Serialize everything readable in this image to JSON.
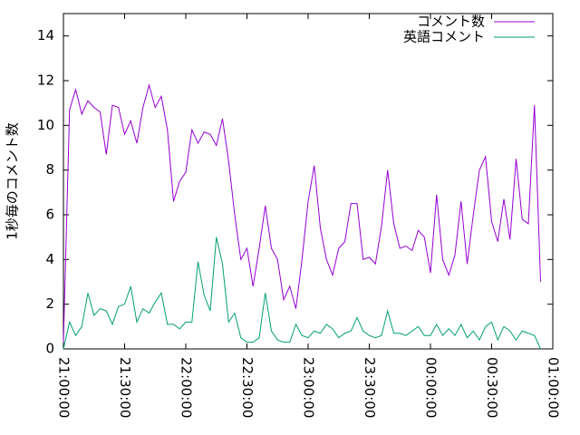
{
  "chart_data": {
    "type": "line",
    "ylabel": "1秒毎のコメント数",
    "x": [
      "21:00:00",
      "21:03:00",
      "21:06:00",
      "21:09:00",
      "21:12:00",
      "21:15:00",
      "21:18:00",
      "21:21:00",
      "21:24:00",
      "21:27:00",
      "21:30:00",
      "21:33:00",
      "21:36:00",
      "21:39:00",
      "21:42:00",
      "21:45:00",
      "21:48:00",
      "21:51:00",
      "21:54:00",
      "21:57:00",
      "22:00:00",
      "22:03:00",
      "22:06:00",
      "22:09:00",
      "22:12:00",
      "22:15:00",
      "22:18:00",
      "22:21:00",
      "22:24:00",
      "22:27:00",
      "22:30:00",
      "22:33:00",
      "22:36:00",
      "22:39:00",
      "22:42:00",
      "22:45:00",
      "22:48:00",
      "22:51:00",
      "22:54:00",
      "22:57:00",
      "23:00:00",
      "23:03:00",
      "23:06:00",
      "23:09:00",
      "23:12:00",
      "23:15:00",
      "23:18:00",
      "23:21:00",
      "23:24:00",
      "23:27:00",
      "23:30:00",
      "23:33:00",
      "23:36:00",
      "23:39:00",
      "23:42:00",
      "23:45:00",
      "23:48:00",
      "23:51:00",
      "23:54:00",
      "23:57:00",
      "00:00:00",
      "00:03:00",
      "00:06:00",
      "00:09:00",
      "00:12:00",
      "00:15:00",
      "00:18:00",
      "00:21:00",
      "00:24:00",
      "00:27:00",
      "00:30:00",
      "00:33:00",
      "00:36:00",
      "00:39:00",
      "00:42:00",
      "00:45:00",
      "00:48:00",
      "00:51:00",
      "00:54:00"
    ],
    "series": [
      {
        "name": "コメント数",
        "color": "#9400d3",
        "values": [
          0.3,
          10.7,
          11.6,
          10.5,
          11.1,
          10.8,
          10.6,
          8.7,
          10.9,
          10.8,
          9.6,
          10.2,
          9.2,
          10.8,
          11.8,
          10.8,
          11.3,
          9.8,
          6.6,
          7.5,
          7.9,
          9.8,
          9.2,
          9.7,
          9.6,
          9.1,
          10.3,
          8.4,
          6.0,
          4.0,
          4.5,
          2.8,
          4.5,
          6.4,
          4.5,
          4.0,
          2.2,
          2.8,
          1.8,
          4.0,
          6.6,
          8.2,
          5.4,
          4.0,
          3.3,
          4.5,
          4.8,
          6.5,
          6.5,
          4.0,
          4.1,
          3.8,
          5.5,
          8.0,
          5.6,
          4.5,
          4.6,
          4.4,
          5.3,
          5.0,
          3.4,
          6.9,
          4.0,
          3.3,
          4.2,
          6.6,
          3.8,
          6.0,
          8.0,
          8.6,
          5.7,
          4.8,
          6.7,
          4.9,
          8.5,
          5.8,
          5.6,
          10.9,
          3.0
        ]
      },
      {
        "name": "英語コメント",
        "color": "#009e73",
        "values": [
          0.0,
          1.2,
          0.6,
          1.0,
          2.5,
          1.5,
          1.8,
          1.7,
          1.1,
          1.9,
          2.0,
          2.8,
          1.2,
          1.8,
          1.6,
          2.1,
          2.5,
          1.1,
          1.1,
          0.9,
          1.2,
          1.2,
          3.9,
          2.4,
          1.7,
          5.0,
          3.8,
          1.2,
          1.6,
          0.5,
          0.3,
          0.3,
          0.5,
          2.5,
          0.8,
          0.4,
          0.3,
          0.3,
          1.1,
          0.6,
          0.5,
          0.8,
          0.7,
          1.1,
          0.9,
          0.5,
          0.7,
          0.8,
          1.4,
          0.8,
          0.6,
          0.5,
          0.6,
          1.7,
          0.7,
          0.7,
          0.6,
          0.8,
          1.0,
          0.6,
          0.6,
          1.1,
          0.6,
          0.9,
          0.6,
          1.1,
          0.5,
          0.8,
          0.4,
          1.0,
          1.2,
          0.4,
          1.0,
          0.8,
          0.4,
          0.8,
          0.7,
          0.6,
          0.0
        ]
      }
    ],
    "xlim": [
      "21:00:00",
      "01:00:00"
    ],
    "xticks": [
      "21:00:00",
      "21:30:00",
      "22:00:00",
      "22:30:00",
      "23:00:00",
      "23:30:00",
      "00:00:00",
      "00:30:00",
      "01:00:00"
    ],
    "ylim": [
      0,
      15
    ],
    "yticks": [
      0,
      2,
      4,
      6,
      8,
      10,
      12,
      14
    ],
    "legend": "top-right"
  }
}
